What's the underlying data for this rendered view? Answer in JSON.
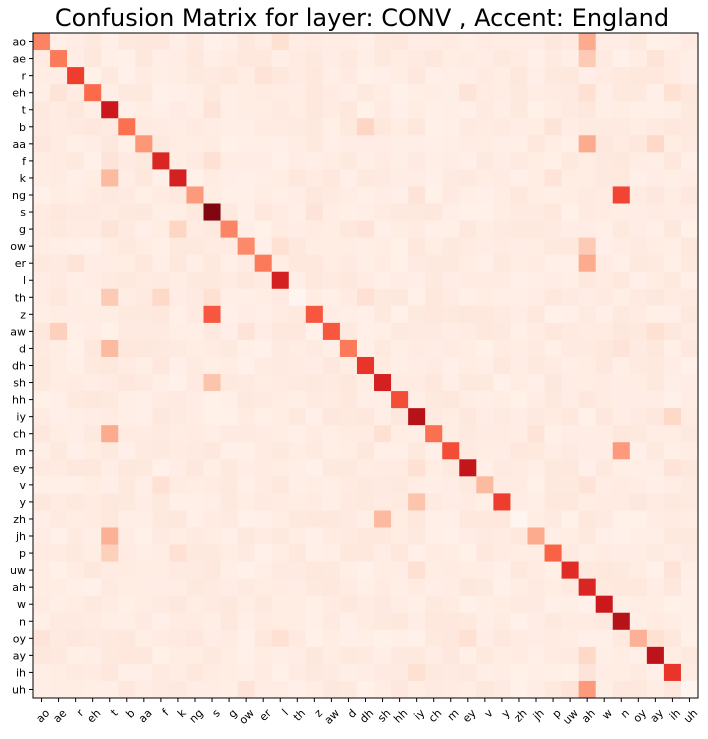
{
  "chart_data": {
    "type": "heatmap",
    "title": "Confusion Matrix for layer: CONV , Accent: England",
    "xlabel": "",
    "ylabel": "",
    "row_labels": [
      "ao",
      "ae",
      "r",
      "eh",
      "t",
      "b",
      "aa",
      "f",
      "k",
      "ng",
      "s",
      "g",
      "ow",
      "er",
      "l",
      "th",
      "z",
      "aw",
      "d",
      "dh",
      "sh",
      "hh",
      "iy",
      "ch",
      "m",
      "ey",
      "v",
      "y",
      "zh",
      "jh",
      "p",
      "uw",
      "ah",
      "w",
      "n",
      "oy",
      "ay",
      "ih",
      "uh"
    ],
    "col_labels": [
      "ao",
      "ae",
      "r",
      "eh",
      "t",
      "b",
      "aa",
      "f",
      "k",
      "ng",
      "s",
      "g",
      "ow",
      "er",
      "l",
      "th",
      "z",
      "aw",
      "d",
      "dh",
      "sh",
      "hh",
      "iy",
      "ch",
      "m",
      "ey",
      "v",
      "y",
      "zh",
      "jh",
      "p",
      "uw",
      "ah",
      "w",
      "n",
      "oy",
      "ay",
      "ih",
      "uh"
    ],
    "diagonal": [
      0.42,
      0.45,
      0.62,
      0.5,
      0.75,
      0.48,
      0.36,
      0.7,
      0.72,
      0.35,
      0.95,
      0.42,
      0.4,
      0.45,
      0.72,
      0.0,
      0.55,
      0.55,
      0.45,
      0.65,
      0.72,
      0.58,
      0.82,
      0.48,
      0.58,
      0.78,
      0.25,
      0.62,
      0.0,
      0.3,
      0.52,
      0.68,
      0.7,
      0.75,
      0.82,
      0.28,
      0.8,
      0.65,
      0.0
    ],
    "off_diagonal": [
      {
        "row": "ao",
        "col": "ah",
        "value": 0.3
      },
      {
        "row": "ao",
        "col": "l",
        "value": 0.12
      },
      {
        "row": "ao",
        "col": "aa",
        "value": 0.08
      },
      {
        "row": "ao",
        "col": "ow",
        "value": 0.08
      },
      {
        "row": "ae",
        "col": "ah",
        "value": 0.2
      },
      {
        "row": "ae",
        "col": "eh",
        "value": 0.08
      },
      {
        "row": "ae",
        "col": "ay",
        "value": 0.1
      },
      {
        "row": "r",
        "col": "er",
        "value": 0.1
      },
      {
        "row": "r",
        "col": "l",
        "value": 0.08
      },
      {
        "row": "eh",
        "col": "ah",
        "value": 0.12
      },
      {
        "row": "eh",
        "col": "ih",
        "value": 0.12
      },
      {
        "row": "eh",
        "col": "ae",
        "value": 0.1
      },
      {
        "row": "eh",
        "col": "ey",
        "value": 0.1
      },
      {
        "row": "t",
        "col": "s",
        "value": 0.1
      },
      {
        "row": "t",
        "col": "k",
        "value": 0.06
      },
      {
        "row": "t",
        "col": "d",
        "value": 0.08
      },
      {
        "row": "b",
        "col": "dh",
        "value": 0.16
      },
      {
        "row": "b",
        "col": "p",
        "value": 0.1
      },
      {
        "row": "aa",
        "col": "ah",
        "value": 0.3
      },
      {
        "row": "aa",
        "col": "ay",
        "value": 0.15
      },
      {
        "row": "aa",
        "col": "ao",
        "value": 0.08
      },
      {
        "row": "f",
        "col": "s",
        "value": 0.12
      },
      {
        "row": "f",
        "col": "t",
        "value": 0.1
      },
      {
        "row": "k",
        "col": "t",
        "value": 0.25
      },
      {
        "row": "k",
        "col": "p",
        "value": 0.1
      },
      {
        "row": "ng",
        "col": "n",
        "value": 0.6
      },
      {
        "row": "ng",
        "col": "iy",
        "value": 0.1
      },
      {
        "row": "s",
        "col": "z",
        "value": 0.1
      },
      {
        "row": "s",
        "col": "t",
        "value": 0.06
      },
      {
        "row": "g",
        "col": "k",
        "value": 0.16
      },
      {
        "row": "g",
        "col": "t",
        "value": 0.1
      },
      {
        "row": "g",
        "col": "dh",
        "value": 0.1
      },
      {
        "row": "ow",
        "col": "ah",
        "value": 0.2
      },
      {
        "row": "ow",
        "col": "l",
        "value": 0.12
      },
      {
        "row": "er",
        "col": "ah",
        "value": 0.3
      },
      {
        "row": "er",
        "col": "r",
        "value": 0.1
      },
      {
        "row": "l",
        "col": "n",
        "value": 0.08
      },
      {
        "row": "l",
        "col": "ah",
        "value": 0.08
      },
      {
        "row": "th",
        "col": "t",
        "value": 0.2
      },
      {
        "row": "th",
        "col": "f",
        "value": 0.15
      },
      {
        "row": "th",
        "col": "dh",
        "value": 0.12
      },
      {
        "row": "th",
        "col": "s",
        "value": 0.12
      },
      {
        "row": "z",
        "col": "s",
        "value": 0.55
      },
      {
        "row": "aw",
        "col": "ae",
        "value": 0.18
      },
      {
        "row": "aw",
        "col": "ow",
        "value": 0.1
      },
      {
        "row": "aw",
        "col": "ay",
        "value": 0.12
      },
      {
        "row": "d",
        "col": "t",
        "value": 0.25
      },
      {
        "row": "d",
        "col": "n",
        "value": 0.1
      },
      {
        "row": "dh",
        "col": "t",
        "value": 0.08
      },
      {
        "row": "sh",
        "col": "s",
        "value": 0.22
      },
      {
        "row": "sh",
        "col": "ch",
        "value": 0.08
      },
      {
        "row": "hh",
        "col": "ah",
        "value": 0.08
      },
      {
        "row": "iy",
        "col": "ih",
        "value": 0.15
      },
      {
        "row": "ch",
        "col": "t",
        "value": 0.3
      },
      {
        "row": "ch",
        "col": "sh",
        "value": 0.12
      },
      {
        "row": "ch",
        "col": "jh",
        "value": 0.1
      },
      {
        "row": "m",
        "col": "n",
        "value": 0.35
      },
      {
        "row": "ey",
        "col": "iy",
        "value": 0.12
      },
      {
        "row": "ey",
        "col": "ih",
        "value": 0.1
      },
      {
        "row": "v",
        "col": "f",
        "value": 0.12
      },
      {
        "row": "v",
        "col": "ah",
        "value": 0.1
      },
      {
        "row": "y",
        "col": "iy",
        "value": 0.22
      },
      {
        "row": "zh",
        "col": "sh",
        "value": 0.25
      },
      {
        "row": "zh",
        "col": "z",
        "value": 0.08
      },
      {
        "row": "jh",
        "col": "t",
        "value": 0.28
      },
      {
        "row": "jh",
        "col": "dh",
        "value": 0.08
      },
      {
        "row": "p",
        "col": "t",
        "value": 0.18
      },
      {
        "row": "p",
        "col": "k",
        "value": 0.12
      },
      {
        "row": "uw",
        "col": "iy",
        "value": 0.12
      },
      {
        "row": "uw",
        "col": "ih",
        "value": 0.1
      },
      {
        "row": "ah",
        "col": "ih",
        "value": 0.08
      },
      {
        "row": "w",
        "col": "dh",
        "value": 0.06
      },
      {
        "row": "n",
        "col": "ah",
        "value": 0.06
      },
      {
        "row": "oy",
        "col": "ey",
        "value": 0.12
      },
      {
        "row": "oy",
        "col": "l",
        "value": 0.12
      },
      {
        "row": "oy",
        "col": "ao",
        "value": 0.1
      },
      {
        "row": "oy",
        "col": "ay",
        "value": 0.12
      },
      {
        "row": "ay",
        "col": "ah",
        "value": 0.15
      },
      {
        "row": "ih",
        "col": "iy",
        "value": 0.12
      },
      {
        "row": "ih",
        "col": "ah",
        "value": 0.1
      },
      {
        "row": "uh",
        "col": "ah",
        "value": 0.35
      },
      {
        "row": "uh",
        "col": "uw",
        "value": 0.1
      },
      {
        "row": "uh",
        "col": "ow",
        "value": 0.1
      },
      {
        "row": "uh",
        "col": "ih",
        "value": 0.08
      }
    ],
    "background_min": 0.03,
    "background_max": 0.08,
    "colormap": "Reds",
    "colors": {
      "low": "#fff5f0",
      "high": "#a50f15"
    }
  }
}
